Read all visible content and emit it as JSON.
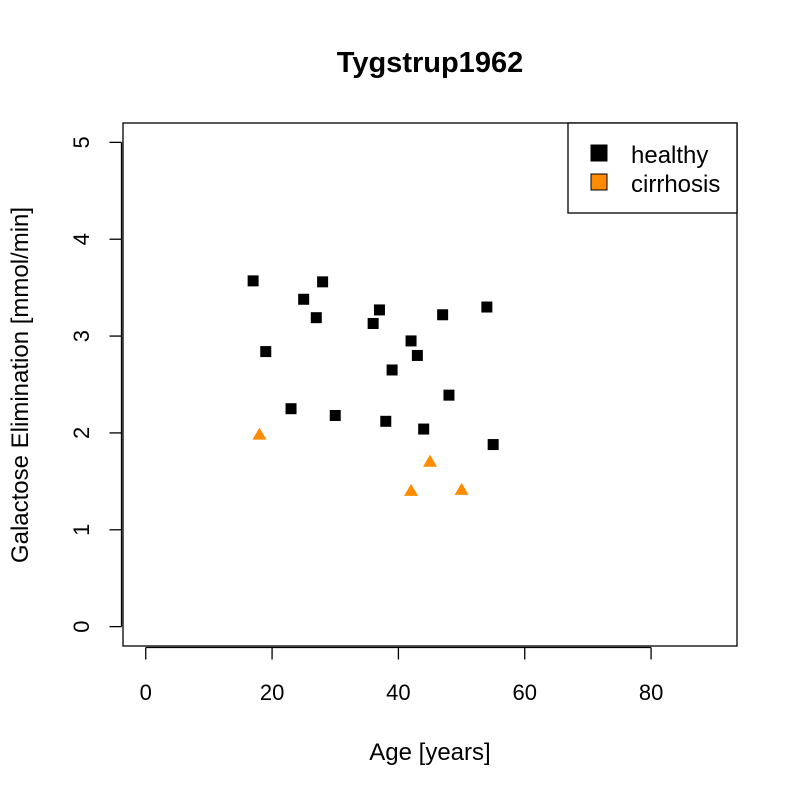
{
  "chart_data": {
    "type": "scatter",
    "title": "Tygstrup1962",
    "xlabel": "Age [years]",
    "ylabel": "Galactose Elimination [mmol/min]",
    "xlim": [
      -3.6,
      93.6
    ],
    "ylim": [
      -0.2,
      5.2
    ],
    "xticks": [
      0,
      20,
      40,
      60,
      80
    ],
    "yticks": [
      0,
      1,
      2,
      3,
      4,
      5
    ],
    "grid": false,
    "legend_position": "top-right",
    "series": [
      {
        "name": "healthy",
        "marker": "square",
        "color": "#000000",
        "points": [
          [
            17,
            3.57
          ],
          [
            19,
            2.84
          ],
          [
            23,
            2.25
          ],
          [
            25,
            3.38
          ],
          [
            27,
            3.19
          ],
          [
            28,
            3.56
          ],
          [
            30,
            2.18
          ],
          [
            36,
            3.13
          ],
          [
            37,
            3.27
          ],
          [
            38,
            2.12
          ],
          [
            39,
            2.65
          ],
          [
            42,
            2.95
          ],
          [
            43,
            2.8
          ],
          [
            44,
            2.04
          ],
          [
            47,
            3.22
          ],
          [
            48,
            2.39
          ],
          [
            54,
            3.3
          ],
          [
            55,
            1.88
          ]
        ]
      },
      {
        "name": "cirrhosis",
        "marker": "triangle",
        "color": "#ff8c00",
        "points": [
          [
            18,
            1.98
          ],
          [
            42,
            1.4
          ],
          [
            45,
            1.7
          ],
          [
            50,
            1.41
          ]
        ]
      }
    ]
  }
}
